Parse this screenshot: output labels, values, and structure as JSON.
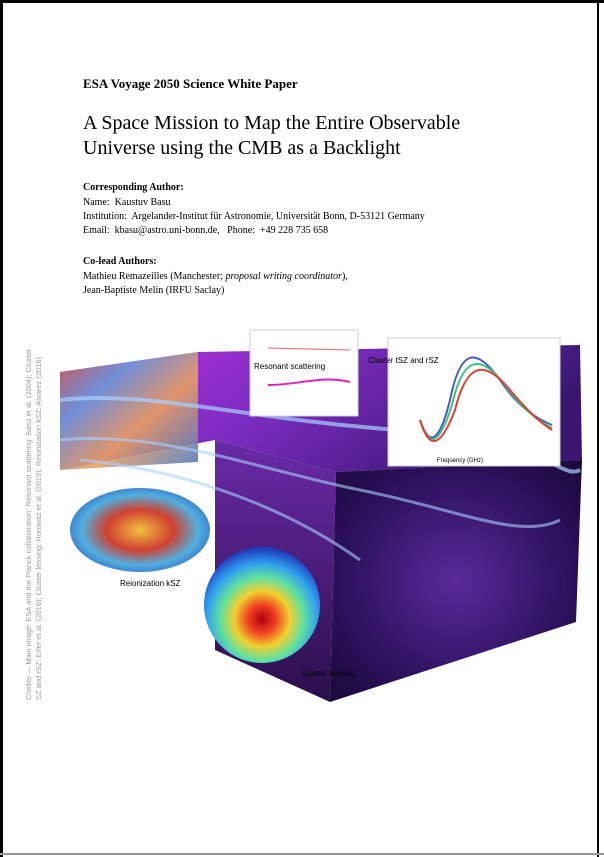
{
  "header": {
    "series_title": "ESA Voyage 2050 Science White Paper",
    "title_lines": [
      "A Space Mission to Map the Entire Observable",
      "Universe using the CMB as a Backlight"
    ]
  },
  "corresponding_author": {
    "heading": "Corresponding Author:",
    "name": "Name:  Kaustuv Basu",
    "institution": "Institution:  Argelander-Institut für Astronomie, Universität Bonn, D-53121 Germany",
    "contact": "Email:  kbasu@astro.uni-bonn.de,   Phone:  +49 228 735 658"
  },
  "co_lead_authors": {
    "heading": "Co-lead Authors:",
    "first": {
      "before": "Mathieu Remazeilles (Manchester; ",
      "italic": "proposal writing coordinator",
      "after": "),"
    },
    "second": "Jean-Baptiste Melin (IRFU Saclay)"
  },
  "figure": {
    "labels": {
      "resonant": "Resonant scattering",
      "cluster_sz": "Cluster tSZ and rSZ",
      "reionization": "Reionization kSZ",
      "lensing": "Cluster lensing"
    },
    "sz_axis_label": "Frequency (GHz)",
    "credits": [
      "Credits — Main image: ESA and the Planck collaboration; Resonant scattering: Basu et al. (2004); Cluster",
      "SZ and rSZ: Erler et al. (2018); Cluster lensing: Horowitz et al. (2019); Reionization kSZ: Alvarez (2016)"
    ]
  }
}
